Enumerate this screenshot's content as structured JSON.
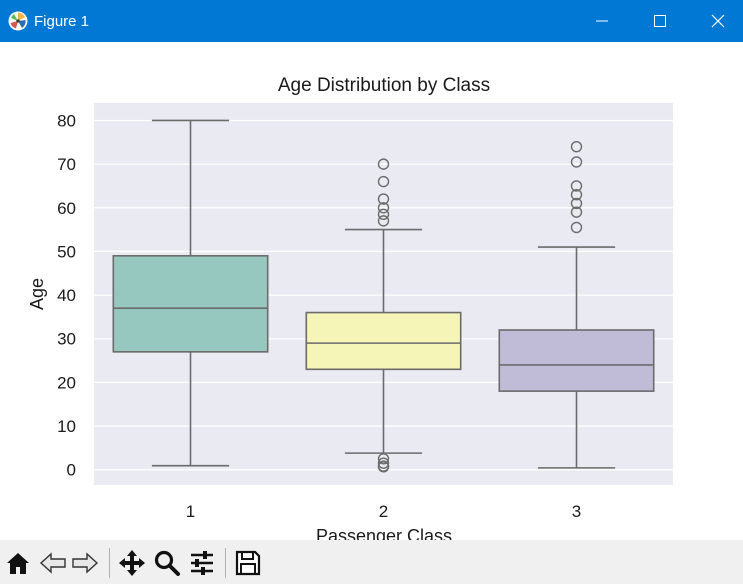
{
  "window": {
    "title": "Figure 1",
    "accent": "#0078d4",
    "controls": {
      "minimize": "minimize-icon",
      "maximize": "maximize-icon",
      "close": "close-icon"
    }
  },
  "toolbar": {
    "buttons": [
      {
        "name": "home-button",
        "icon": "home-icon"
      },
      {
        "name": "back-button",
        "icon": "arrow-left-icon"
      },
      {
        "name": "forward-button",
        "icon": "arrow-right-icon"
      },
      {
        "name": "pan-button",
        "icon": "move-icon"
      },
      {
        "name": "zoom-button",
        "icon": "magnifier-icon"
      },
      {
        "name": "configure-subplots-button",
        "icon": "sliders-icon"
      },
      {
        "name": "save-button",
        "icon": "floppy-disk-icon"
      }
    ]
  },
  "chart_data": {
    "type": "box",
    "title": "Age Distribution by Class",
    "xlabel": "Passenger Class",
    "ylabel": "Age",
    "categories": [
      "1",
      "2",
      "3"
    ],
    "ylim": [
      -3.5,
      84
    ],
    "yticks": [
      0,
      10,
      20,
      30,
      40,
      50,
      60,
      70,
      80
    ],
    "grid": true,
    "background": "#eaeaf2",
    "boxes": [
      {
        "category": "1",
        "color": "#96c8bf",
        "whisker_low": 0.92,
        "q1": 27,
        "median": 37,
        "q3": 49,
        "whisker_high": 80,
        "outliers": []
      },
      {
        "category": "2",
        "color": "#f5f5b8",
        "whisker_low": 3.8,
        "q1": 23,
        "median": 29,
        "q3": 36,
        "whisker_high": 55,
        "outliers": [
          0.67,
          0.83,
          1.5,
          2.5,
          57,
          58.5,
          60,
          62,
          66,
          70
        ]
      },
      {
        "category": "3",
        "color": "#c0bcd8",
        "whisker_low": 0.42,
        "q1": 18,
        "median": 24,
        "q3": 32,
        "whisker_high": 51,
        "outliers": [
          55.5,
          59,
          61,
          63,
          65,
          70.5,
          74
        ]
      }
    ]
  }
}
